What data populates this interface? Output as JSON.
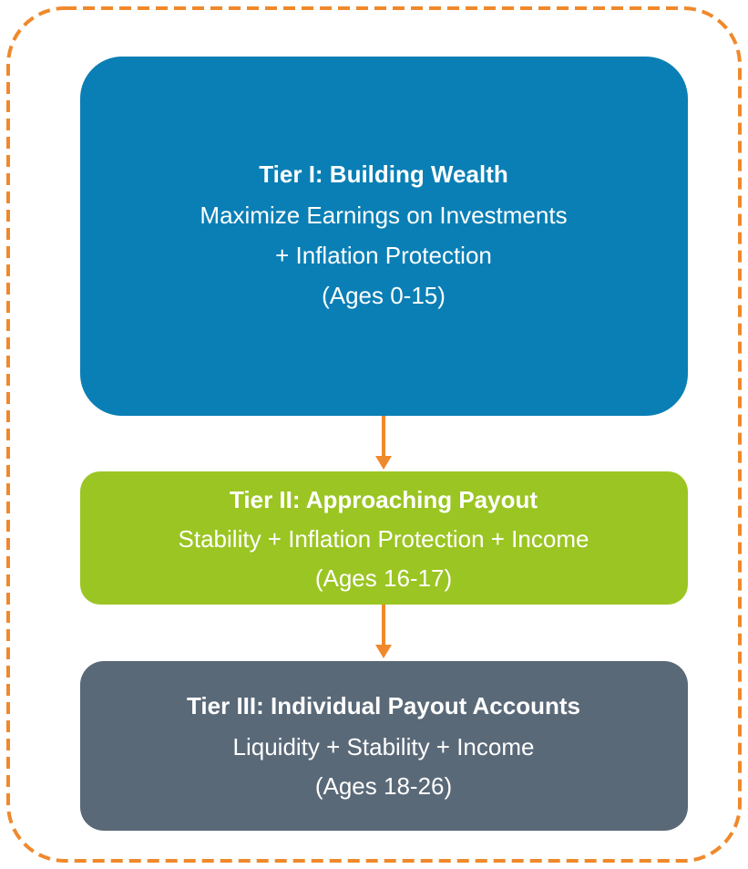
{
  "tiers": [
    {
      "title": "Tier I: Building Wealth",
      "lines": [
        "Maximize Earnings on Investments",
        "+ Inflation Protection",
        "(Ages 0-15)"
      ]
    },
    {
      "title": "Tier II: Approaching Payout",
      "lines": [
        "Stability + Inflation Protection + Income",
        "(Ages 16-17)"
      ]
    },
    {
      "title": "Tier III: Individual Payout Accounts",
      "lines": [
        "Liquidity + Stability + Income",
        "(Ages 18-26)"
      ]
    }
  ]
}
